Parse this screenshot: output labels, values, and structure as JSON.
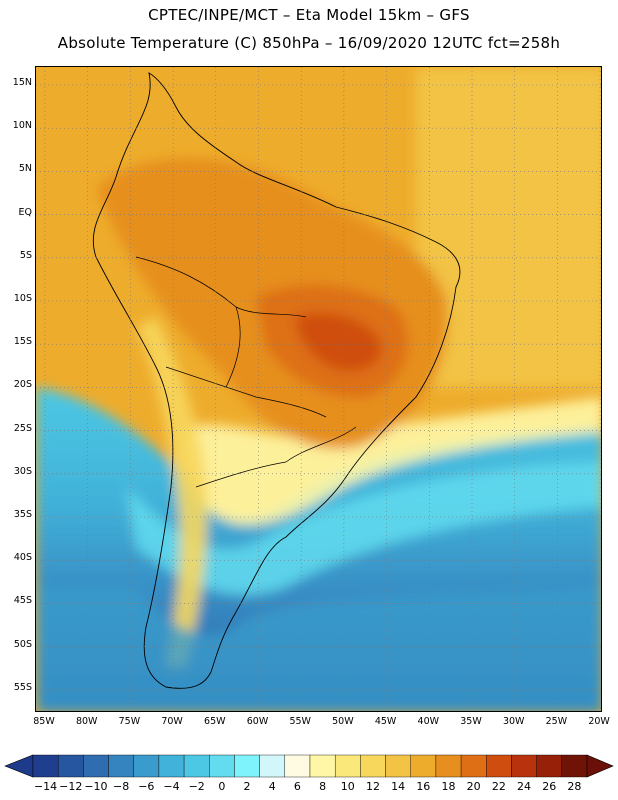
{
  "header": {
    "line1": "CPTEC/INPE/MCT –  Eta Model 15km – GFS",
    "line2": "Absolute Temperature (C) 850hPa – 16/09/2020 12UTC fct=258h"
  },
  "map": {
    "lat_labels": [
      "15N",
      "10N",
      "5N",
      "EQ",
      "5S",
      "10S",
      "15S",
      "20S",
      "25S",
      "30S",
      "35S",
      "40S",
      "45S",
      "50S",
      "55S"
    ],
    "lon_labels": [
      "85W",
      "80W",
      "75W",
      "70W",
      "65W",
      "60W",
      "55W",
      "50W",
      "45W",
      "40W",
      "35W",
      "30W",
      "25W",
      "20W"
    ],
    "grid": "dotted"
  },
  "colorbar": {
    "labels": [
      "-14",
      "-12",
      "-10",
      "-8",
      "-6",
      "-4",
      "-2",
      "0",
      "2",
      "4",
      "6",
      "8",
      "10",
      "12",
      "14",
      "16",
      "18",
      "20",
      "22",
      "24",
      "26",
      "28"
    ],
    "colors": [
      "#1f3e8e",
      "#2756a0",
      "#2f6cb0",
      "#3584bf",
      "#3a9ccc",
      "#41b2d9",
      "#4dc8e4",
      "#62dcee",
      "#7ff3fb",
      "#d2f7fb",
      "#fffbe3",
      "#fff7a6",
      "#fbe87a",
      "#f7d75c",
      "#f2c344",
      "#eeac2c",
      "#e68f1f",
      "#de6f14",
      "#cf4d0f",
      "#b8330d",
      "#962008",
      "#6e1306"
    ],
    "under_color": "#1e3a8a",
    "over_color": "#6b1008"
  }
}
